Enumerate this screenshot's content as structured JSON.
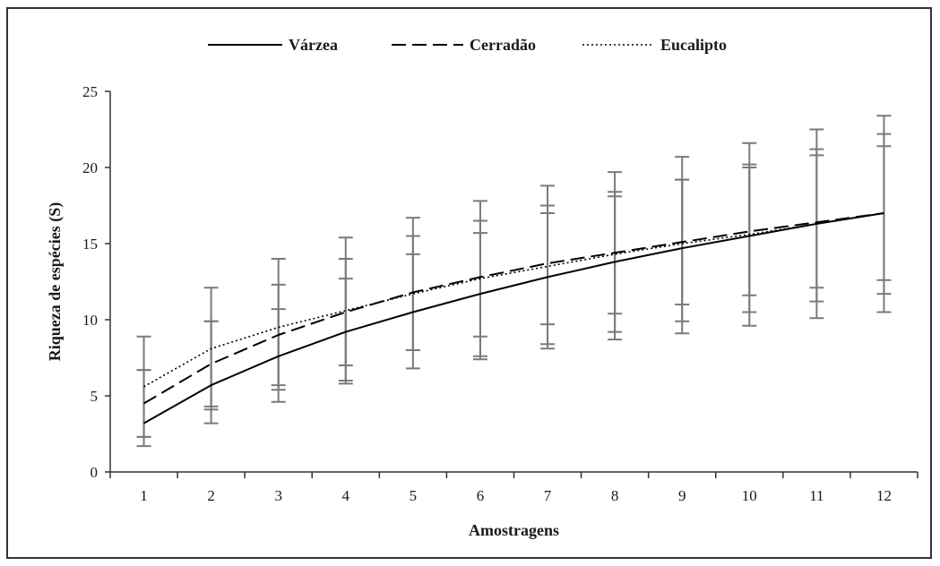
{
  "chart_data": {
    "type": "line",
    "x": [
      1,
      2,
      3,
      4,
      5,
      6,
      7,
      8,
      9,
      10,
      11,
      12
    ],
    "xlabel": "Amostragens",
    "ylabel": "Riqueza de espécies (S)",
    "ylim": [
      0,
      25
    ],
    "yticks": [
      "0",
      "5",
      "10",
      "15",
      "20",
      "25"
    ],
    "xticks": [
      "1",
      "2",
      "3",
      "4",
      "5",
      "6",
      "7",
      "8",
      "9",
      "10",
      "11",
      "12"
    ],
    "legend_position": "top-center",
    "grid": false,
    "series": [
      {
        "name": "Várzea",
        "style": "solid",
        "color": "#000000",
        "values": [
          3.2,
          5.7,
          7.6,
          9.2,
          10.5,
          11.7,
          12.8,
          13.8,
          14.7,
          15.5,
          16.3,
          17.0
        ],
        "err_low": [
          1.7,
          3.2,
          4.6,
          5.8,
          6.8,
          7.4,
          8.1,
          8.7,
          9.1,
          9.6,
          10.1,
          10.5
        ],
        "err_high": [
          6.7,
          9.9,
          12.3,
          14.0,
          15.5,
          16.5,
          17.5,
          18.4,
          19.2,
          20.0,
          20.8,
          22.2
        ]
      },
      {
        "name": "Cerradão",
        "style": "dashed",
        "color": "#000000",
        "values": [
          4.5,
          7.1,
          9.0,
          10.5,
          11.8,
          12.8,
          13.7,
          14.4,
          15.1,
          15.8,
          16.4,
          17.0
        ],
        "err_low": [
          2.3,
          4.1,
          5.4,
          6.0,
          8.0,
          7.6,
          8.4,
          9.2,
          9.9,
          10.5,
          11.2,
          11.7
        ],
        "err_high": [
          8.9,
          12.1,
          14.0,
          15.4,
          16.7,
          17.8,
          18.8,
          19.7,
          20.7,
          21.6,
          22.5,
          23.4
        ]
      },
      {
        "name": "Eucalipto",
        "style": "dotted",
        "color": "#000000",
        "values": [
          5.6,
          8.1,
          9.5,
          10.6,
          11.7,
          12.7,
          13.5,
          14.3,
          15.0,
          15.6,
          16.3,
          17.0
        ],
        "err_low": [
          2.3,
          4.3,
          5.7,
          7.0,
          8.0,
          8.9,
          9.7,
          10.4,
          11.0,
          11.6,
          12.1,
          12.6
        ],
        "err_high": [
          6.7,
          9.9,
          10.7,
          12.7,
          14.3,
          15.7,
          17.0,
          18.1,
          19.2,
          20.2,
          21.2,
          21.4
        ]
      }
    ],
    "error_bar_color": "#7a7a7a"
  }
}
